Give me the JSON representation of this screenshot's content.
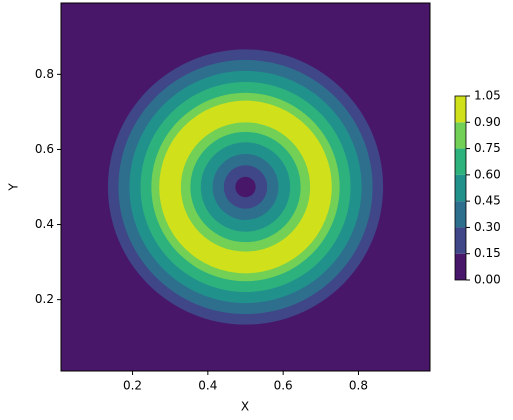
{
  "chart_data": {
    "type": "contour",
    "xlabel": "X",
    "ylabel": "Y",
    "center": [
      0.5,
      0.5
    ],
    "x": [
      0,
      0.025,
      0.05,
      0.075,
      0.1,
      0.125,
      0.15,
      0.175,
      0.2,
      0.225,
      0.25,
      0.275,
      0.3,
      0.325,
      0.35,
      0.375,
      0.4
    ],
    "values": [
      0,
      0.14,
      0.26,
      0.39,
      0.51,
      0.63,
      0.77,
      0.92,
      1.0,
      0.93,
      0.75,
      0.62,
      0.49,
      0.37,
      0.23,
      0.1,
      0
    ],
    "levels": [
      0,
      0.15,
      0.3,
      0.45,
      0.6,
      0.75,
      0.9,
      1.05
    ],
    "colors": [
      "#481769",
      "#3f4788",
      "#2e6f8e",
      "#21918c",
      "#2db27d",
      "#73d056",
      "#d0e11c"
    ],
    "xlim": [
      0.01,
      0.99
    ],
    "ylim": [
      0.01,
      0.99
    ],
    "xticks": [
      0.2,
      0.4,
      0.6,
      0.8
    ],
    "yticks": [
      0.2,
      0.4,
      0.6,
      0.8
    ],
    "colorbar_ticks": [
      {
        "value": 0,
        "label": "0.00"
      },
      {
        "value": 0.15,
        "label": "0.15"
      },
      {
        "value": 0.3,
        "label": "0.30"
      },
      {
        "value": 0.45,
        "label": "0.45"
      },
      {
        "value": 0.6,
        "label": "0.60"
      },
      {
        "value": 0.75,
        "label": "0.75"
      },
      {
        "value": 0.9,
        "label": "0.90"
      },
      {
        "value": 1.05,
        "label": "1.05"
      }
    ]
  }
}
